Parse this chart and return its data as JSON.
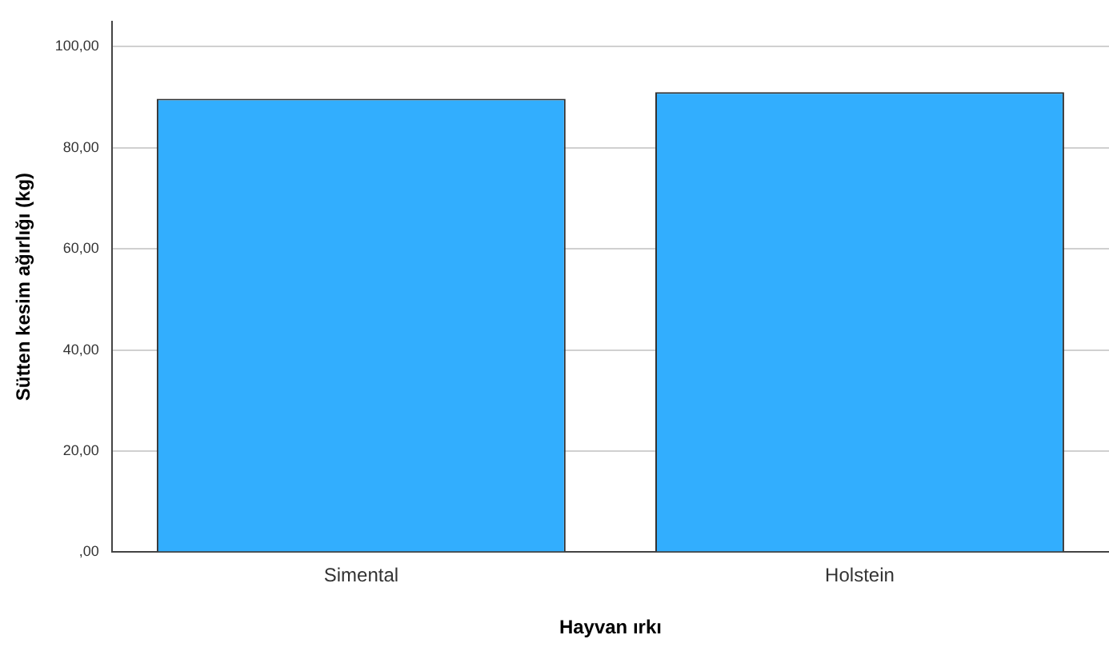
{
  "chart_data": {
    "type": "bar",
    "xlabel": "Hayvan ırkı",
    "ylabel": "Sütten kesim ağırlığı (kg)",
    "categories": [
      "Simental",
      "Holstein"
    ],
    "values": [
      89.7,
      91.0
    ],
    "color": "#32aefe",
    "ylim": [
      0,
      105
    ],
    "yticks": [
      {
        "value": 0,
        "label": ",00"
      },
      {
        "value": 20,
        "label": "20,00"
      },
      {
        "value": 40,
        "label": "40,00"
      },
      {
        "value": 60,
        "label": "60,00"
      },
      {
        "value": 80,
        "label": "80,00"
      },
      {
        "value": 100,
        "label": "100,00"
      }
    ],
    "grid": "y",
    "legend": false
  }
}
